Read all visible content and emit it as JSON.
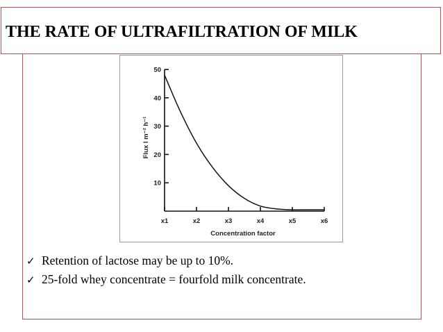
{
  "slide": {
    "title": "THE RATE OF ULTRAFILTRATION OF MILK",
    "bullets": [
      {
        "icon": "checkmark-icon",
        "text": "Retention of lactose may be up to 10%."
      },
      {
        "icon": "checkmark-icon",
        "text": "25-fold whey concentrate = fourfold milk concentrate."
      }
    ],
    "accent_color": "#c0504d"
  },
  "chart_data": {
    "type": "line",
    "title": "",
    "xlabel": "Concentration factor",
    "ylabel": "Flux l m⁻² h⁻¹",
    "categories": [
      "x1",
      "x2",
      "x3",
      "x4",
      "x5",
      "x6"
    ],
    "x": [
      1,
      2,
      3,
      4,
      5,
      6
    ],
    "ylim": [
      0,
      50
    ],
    "yticks": [
      10,
      20,
      30,
      40,
      50
    ],
    "grid": false,
    "series": [
      {
        "x": [
          1,
          1.5,
          2,
          2.5,
          3,
          3.5,
          4,
          4.5,
          5,
          5.5,
          6
        ],
        "values": [
          48,
          35,
          24,
          15.5,
          9,
          4.5,
          1.8,
          0.8,
          0.5,
          0.5,
          0.5
        ]
      }
    ]
  }
}
